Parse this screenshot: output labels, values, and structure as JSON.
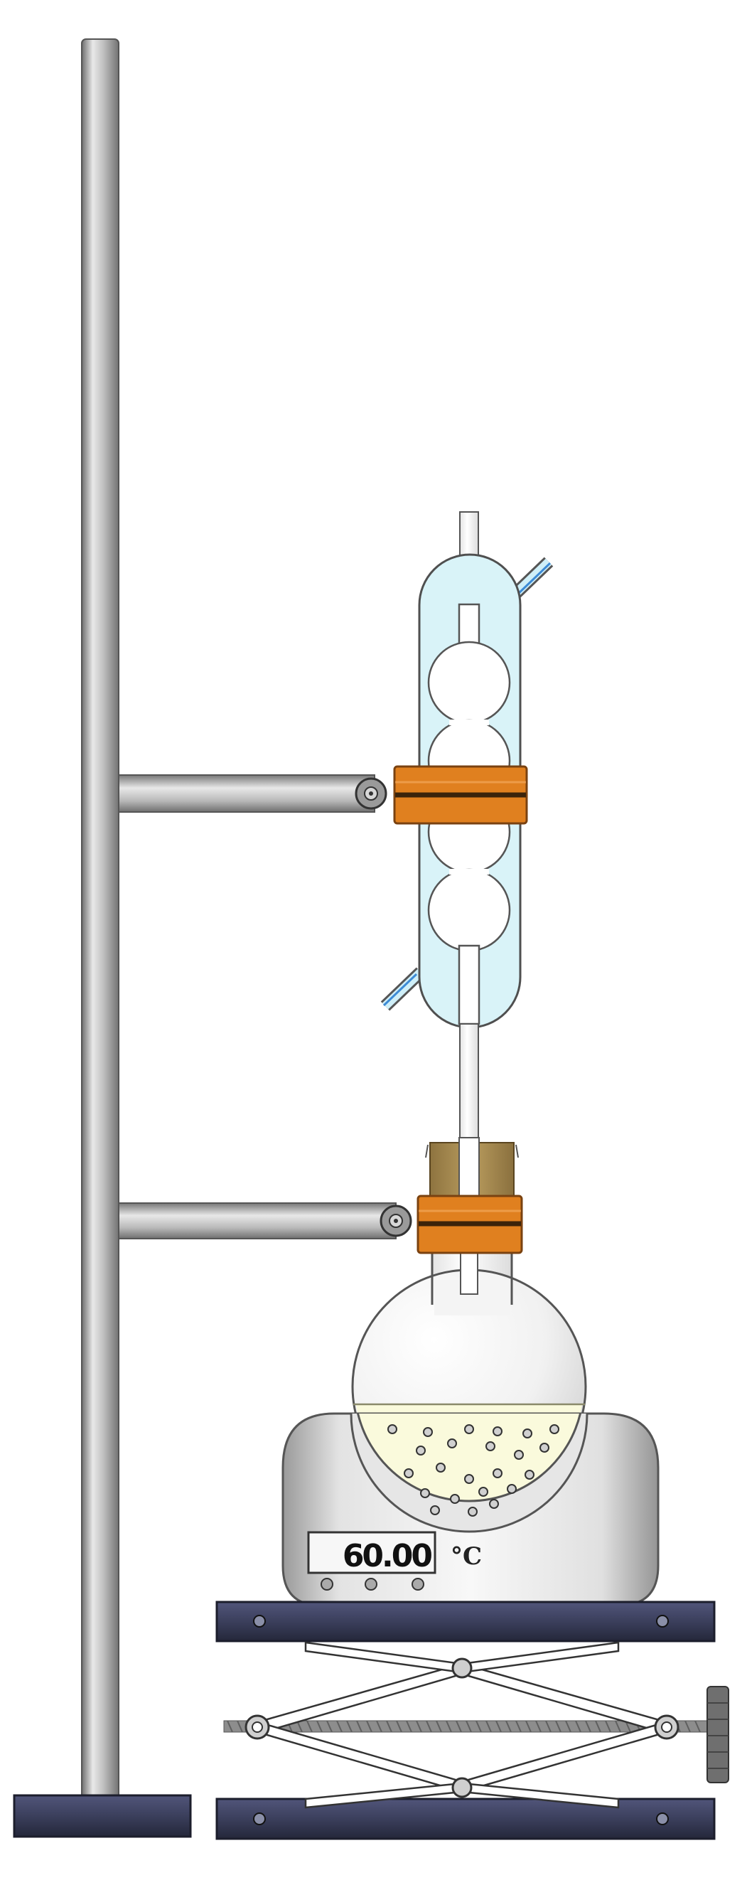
{
  "hotplate": {
    "temperature": "60.00",
    "unit": "°C"
  },
  "colors": {
    "rod": "#b9b9b9",
    "rod_dark": "#7a7a7a",
    "base": "#3b3f5c",
    "clamp": "#e0801f",
    "cork": "#a88d52",
    "condenser_jacket": "#d9f3f8",
    "liquid": "#fafadc",
    "water_hose": "#3d8bd6"
  },
  "icons": {
    "stand": "retort-stand-icon",
    "condenser": "bulb-condenser-icon",
    "flask": "round-bottom-flask-icon",
    "heater": "hotplate-icon",
    "lab_jack": "scissor-lab-jack-icon"
  }
}
